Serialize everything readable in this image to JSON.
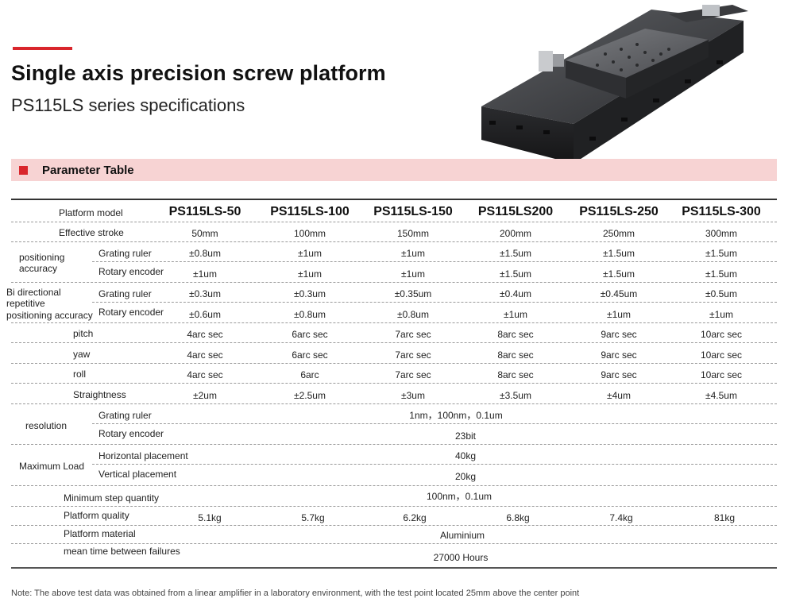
{
  "header": {
    "title": "Single axis precision screw platform",
    "subtitle": "PS115LS series specifications"
  },
  "section": {
    "title": "Parameter Table"
  },
  "table": {
    "model_label": "Platform model",
    "models": [
      "PS115LS-50",
      "PS115LS-100",
      "PS115LS-150",
      "PS115LS200",
      "PS115LS-250",
      "PS115LS-300"
    ],
    "effective_stroke": {
      "label": "Effective stroke",
      "values": [
        "50mm",
        "100mm",
        "150mm",
        "200mm",
        "250mm",
        "300mm"
      ]
    },
    "positioning_accuracy": {
      "label_line1": "positioning",
      "label_line2": "accuracy",
      "grating": {
        "label": "Grating ruler",
        "values": [
          "±0.8um",
          "±1um",
          "±1um",
          "±1.5um",
          "±1.5um",
          "±1.5um"
        ]
      },
      "encoder": {
        "label": "Rotary encoder",
        "values": [
          "±1um",
          "±1um",
          "±1um",
          "±1.5um",
          "±1.5um",
          "±1.5um"
        ]
      }
    },
    "bi_directional": {
      "label_line1": "Bi directional",
      "label_line2": "repetitive",
      "label_line3": "positioning accuracy",
      "grating": {
        "label": "Grating ruler",
        "values": [
          "±0.3um",
          "±0.3um",
          "±0.35um",
          "±0.4um",
          "±0.45um",
          "±0.5um"
        ]
      },
      "encoder": {
        "label": "Rotary encoder",
        "values": [
          "±0.6um",
          "±0.8um",
          "±0.8um",
          "±1um",
          "±1um",
          "±1um"
        ]
      }
    },
    "pitch": {
      "label": "pitch",
      "values": [
        "4arc sec",
        "6arc sec",
        "7arc sec",
        "8arc sec",
        "9arc sec",
        "10arc sec"
      ]
    },
    "yaw": {
      "label": "yaw",
      "values": [
        "4arc sec",
        "6arc sec",
        "7arc sec",
        "8arc sec",
        "9arc sec",
        "10arc sec"
      ]
    },
    "roll": {
      "label": "roll",
      "values": [
        "4arc sec",
        "6arc",
        "7arc sec",
        "8arc sec",
        "9arc sec",
        "10arc sec"
      ]
    },
    "straightness": {
      "label": "Straightness",
      "values": [
        "±2um",
        "±2.5um",
        "±3um",
        "±3.5um",
        "±4um",
        "±4.5um"
      ]
    },
    "resolution": {
      "label": "resolution",
      "grating": {
        "label": "Grating ruler",
        "value": "1nm，100nm，0.1um"
      },
      "encoder": {
        "label": "Rotary encoder",
        "value": "23bit"
      }
    },
    "max_load": {
      "label": "Maximum Load",
      "horizontal": {
        "label": "Horizontal placement",
        "value": "40kg"
      },
      "vertical": {
        "label": "Vertical placement",
        "value": "20kg"
      }
    },
    "min_step": {
      "label": "Minimum step quantity",
      "value": "100nm，0.1um"
    },
    "quality": {
      "label": "Platform quality",
      "values": [
        "5.1kg",
        "5.7kg",
        "6.2kg",
        "6.8kg",
        "7.4kg",
        "81kg"
      ]
    },
    "material": {
      "label": "Platform material",
      "value": "Aluminium"
    },
    "mtbf": {
      "label": "mean time between failures",
      "value": "27000 Hours"
    }
  },
  "footer": {
    "note": "Note: The above test data was obtained from a linear amplifier in a laboratory environment, with the test point located 25mm above the center point"
  },
  "colors": {
    "accent": "#d9262c",
    "band": "#f7d3d3"
  }
}
